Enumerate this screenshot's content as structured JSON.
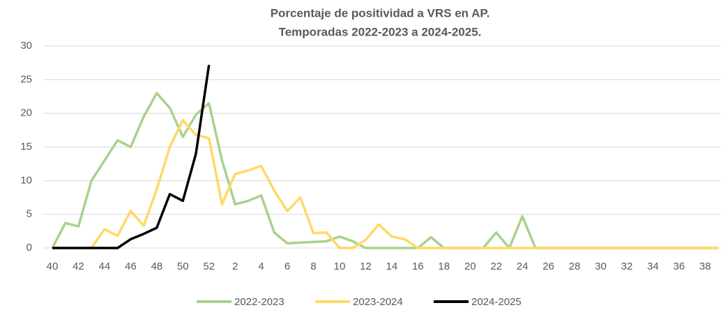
{
  "chart_data": {
    "type": "line",
    "title": [
      "Porcentaje de positividad a VRS en AP.",
      "Temporadas 2022-2023 a 2024-2025."
    ],
    "categories": [
      "40",
      null,
      "42",
      null,
      "44",
      null,
      "46",
      null,
      "48",
      null,
      "50",
      null,
      "52",
      null,
      "2",
      null,
      "4",
      null,
      "6",
      null,
      "8",
      null,
      "10",
      null,
      "12",
      null,
      "14",
      null,
      "16",
      null,
      "18",
      null,
      "20",
      null,
      "22",
      null,
      "24",
      null,
      "26",
      null,
      "28",
      null,
      "30",
      null,
      "32",
      null,
      "34",
      null,
      "36",
      null,
      "38",
      null
    ],
    "series": [
      {
        "name": "2022-2023",
        "color": "#a9d18e",
        "values": [
          0,
          3.7,
          3.2,
          10,
          13,
          16,
          15,
          19.5,
          23,
          20.8,
          16.5,
          19.8,
          21.5,
          13,
          6.5,
          7,
          7.8,
          2.3,
          0.7,
          0.8,
          0.9,
          1,
          1.7,
          1,
          0,
          0,
          0,
          0,
          0,
          1.6,
          0,
          0,
          0,
          0,
          2.3,
          0,
          4.7,
          0,
          0,
          0,
          0,
          0,
          0,
          0,
          0,
          0,
          0,
          0,
          0,
          0,
          0,
          0
        ]
      },
      {
        "name": "2023-2024",
        "color": "#ffd966",
        "values": [
          0,
          0,
          0,
          0,
          2.8,
          1.8,
          5.5,
          3.3,
          8.7,
          15,
          19,
          16.8,
          16.3,
          6.5,
          11,
          11.5,
          12.2,
          8.5,
          5.5,
          7.5,
          2.2,
          2.3,
          0,
          0,
          1.2,
          3.5,
          1.7,
          1.3,
          0,
          0,
          0,
          0,
          0,
          0,
          0,
          0,
          0,
          0,
          0,
          0,
          0,
          0,
          0,
          0,
          0,
          0,
          0,
          0,
          0,
          0,
          0,
          0
        ]
      },
      {
        "name": "2024-2025",
        "color": "#000000",
        "values": [
          0,
          0,
          0,
          0,
          0,
          0,
          1.3,
          2.1,
          3,
          8,
          7,
          14,
          27.2,
          null,
          null,
          null,
          null,
          null,
          null,
          null,
          null,
          null,
          null,
          null,
          null,
          null,
          null,
          null,
          null,
          null,
          null,
          null,
          null,
          null,
          null,
          null,
          null,
          null,
          null,
          null,
          null,
          null,
          null,
          null,
          null,
          null,
          null,
          null,
          null,
          null,
          null,
          null
        ]
      }
    ],
    "ylim": [
      0,
      30
    ],
    "yticks": [
      0,
      5,
      10,
      15,
      20,
      25,
      30
    ],
    "grid": true,
    "legend": "bottom"
  }
}
